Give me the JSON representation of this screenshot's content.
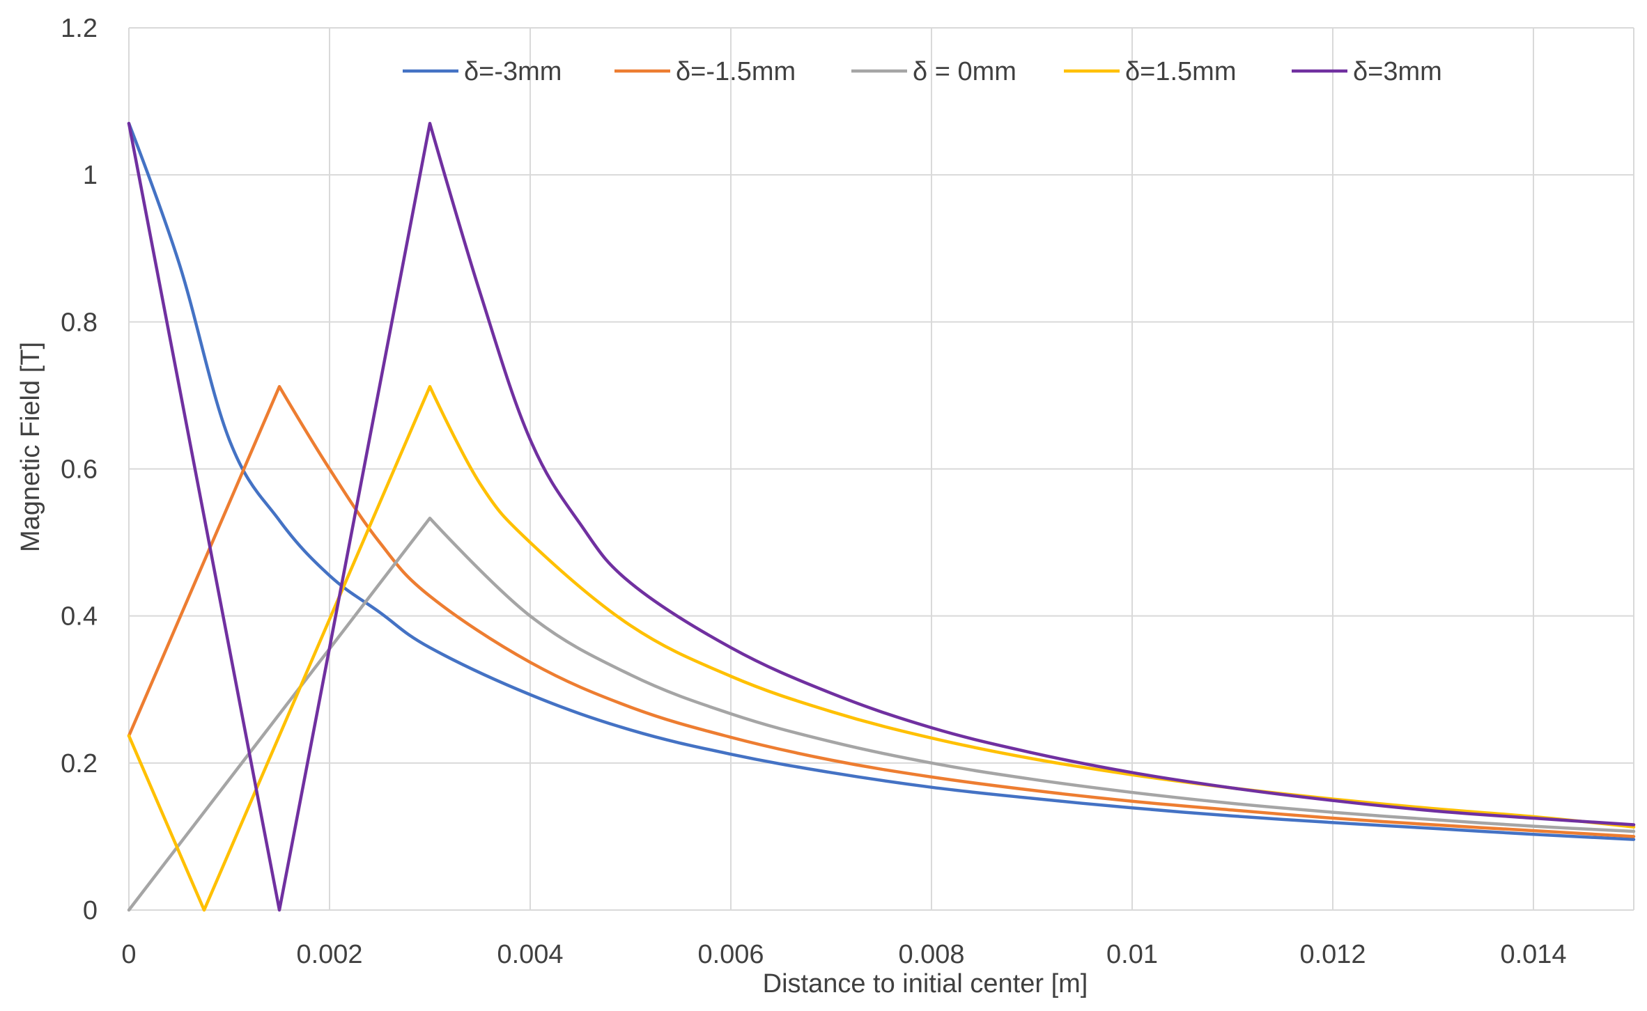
{
  "chart_data": {
    "type": "line",
    "title": "",
    "xlabel": "Distance to initial center [m]",
    "ylabel": "Magnetic Field [T]",
    "xlim": [
      0,
      0.015
    ],
    "ylim": [
      0,
      1.2
    ],
    "x_ticks": [
      "0",
      "0.002",
      "0.004",
      "0.006",
      "0.008",
      "0.01",
      "0.012",
      "0.014"
    ],
    "x_tick_values": [
      0,
      0.002,
      0.004,
      0.006,
      0.008,
      0.01,
      0.012,
      0.014
    ],
    "y_ticks": [
      "0",
      "0.2",
      "0.4",
      "0.6",
      "0.8",
      "1",
      "1.2"
    ],
    "y_tick_values": [
      0,
      0.2,
      0.4,
      0.6,
      0.8,
      1.0,
      1.2
    ],
    "grid": "both",
    "legend_position": "top",
    "series": [
      {
        "name": "δ=-3mm",
        "color": "#4472C4",
        "points": [
          [
            0,
            1.07
          ],
          [
            0.0005,
            0.88
          ],
          [
            0.001,
            0.64
          ],
          [
            0.0015,
            0.53
          ],
          [
            0.002,
            0.455
          ],
          [
            0.0025,
            0.405
          ],
          [
            0.003,
            0.357
          ],
          [
            0.004,
            0.293
          ],
          [
            0.005,
            0.245
          ],
          [
            0.006,
            0.212
          ],
          [
            0.007,
            0.187
          ],
          [
            0.008,
            0.167
          ],
          [
            0.009,
            0.152
          ],
          [
            0.01,
            0.139
          ],
          [
            0.011,
            0.128
          ],
          [
            0.012,
            0.119
          ],
          [
            0.013,
            0.111
          ],
          [
            0.014,
            0.103
          ],
          [
            0.015,
            0.096
          ]
        ]
      },
      {
        "name": "δ=-1.5mm",
        "color": "#ED7D31",
        "points": [
          [
            0,
            0.237
          ],
          [
            0.0015,
            0.712
          ],
          [
            0.002,
            0.6
          ],
          [
            0.0025,
            0.5
          ],
          [
            0.003,
            0.427
          ],
          [
            0.004,
            0.337
          ],
          [
            0.005,
            0.276
          ],
          [
            0.006,
            0.235
          ],
          [
            0.007,
            0.204
          ],
          [
            0.008,
            0.181
          ],
          [
            0.009,
            0.163
          ],
          [
            0.01,
            0.148
          ],
          [
            0.011,
            0.136
          ],
          [
            0.012,
            0.125
          ],
          [
            0.013,
            0.116
          ],
          [
            0.014,
            0.108
          ],
          [
            0.015,
            0.1
          ]
        ]
      },
      {
        "name": "δ = 0mm",
        "color": "#A5A5A5",
        "points": [
          [
            0,
            0.0
          ],
          [
            0.003,
            0.533
          ],
          [
            0.004,
            0.4
          ],
          [
            0.005,
            0.32
          ],
          [
            0.006,
            0.267
          ],
          [
            0.007,
            0.229
          ],
          [
            0.008,
            0.2
          ],
          [
            0.009,
            0.178
          ],
          [
            0.01,
            0.16
          ],
          [
            0.011,
            0.145
          ],
          [
            0.012,
            0.133
          ],
          [
            0.013,
            0.123
          ],
          [
            0.014,
            0.114
          ],
          [
            0.015,
            0.107
          ]
        ]
      },
      {
        "name": "δ=1.5mm",
        "color": "#FFC000",
        "points": [
          [
            0,
            0.237
          ],
          [
            0.00075,
            0.0
          ],
          [
            0.003,
            0.712
          ],
          [
            0.0035,
            0.58
          ],
          [
            0.004,
            0.5
          ],
          [
            0.005,
            0.387
          ],
          [
            0.006,
            0.318
          ],
          [
            0.007,
            0.27
          ],
          [
            0.008,
            0.234
          ],
          [
            0.009,
            0.206
          ],
          [
            0.01,
            0.184
          ],
          [
            0.011,
            0.166
          ],
          [
            0.012,
            0.151
          ],
          [
            0.013,
            0.138
          ],
          [
            0.014,
            0.127
          ],
          [
            0.015,
            0.113
          ]
        ]
      },
      {
        "name": "δ=3mm",
        "color": "#7030A0",
        "points": [
          [
            0,
            1.07
          ],
          [
            0.0015,
            0.0
          ],
          [
            0.003,
            1.07
          ],
          [
            0.0035,
            0.84
          ],
          [
            0.004,
            0.64
          ],
          [
            0.0045,
            0.525
          ],
          [
            0.005,
            0.445
          ],
          [
            0.006,
            0.357
          ],
          [
            0.007,
            0.295
          ],
          [
            0.008,
            0.248
          ],
          [
            0.009,
            0.214
          ],
          [
            0.01,
            0.187
          ],
          [
            0.011,
            0.166
          ],
          [
            0.012,
            0.149
          ],
          [
            0.013,
            0.135
          ],
          [
            0.014,
            0.125
          ],
          [
            0.015,
            0.116
          ]
        ]
      }
    ]
  }
}
